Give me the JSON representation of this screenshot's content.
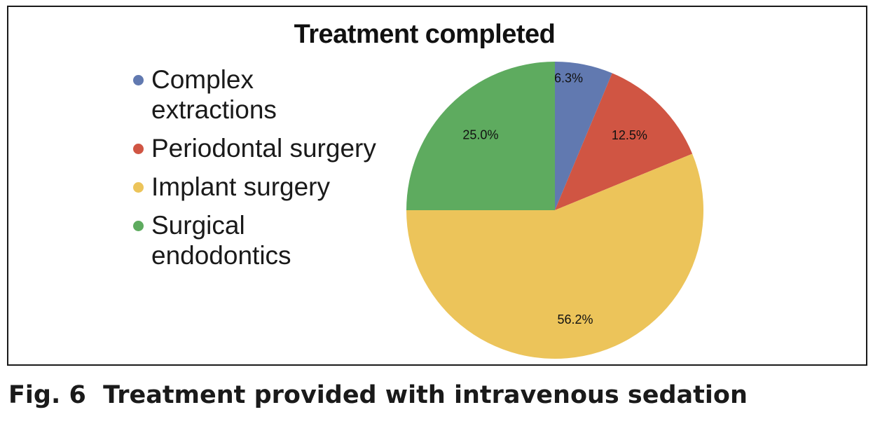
{
  "chart_data": {
    "type": "pie",
    "title": "Treatment completed",
    "categories": [
      "Complex extractions",
      "Periodontal surgery",
      "Implant surgery",
      "Surgical endodontics"
    ],
    "values": [
      6.3,
      12.5,
      56.2,
      25.0
    ],
    "labels": [
      "6.3%",
      "12.5%",
      "56.2%",
      "25.0%"
    ],
    "colors": [
      "#6179b0",
      "#d05543",
      "#ecc45a",
      "#5eab5f"
    ],
    "legend_position": "left",
    "start_angle": "top",
    "direction": "clockwise"
  },
  "caption": {
    "figure_number": "Fig. 6",
    "text": "Treatment provided with intravenous sedation"
  }
}
